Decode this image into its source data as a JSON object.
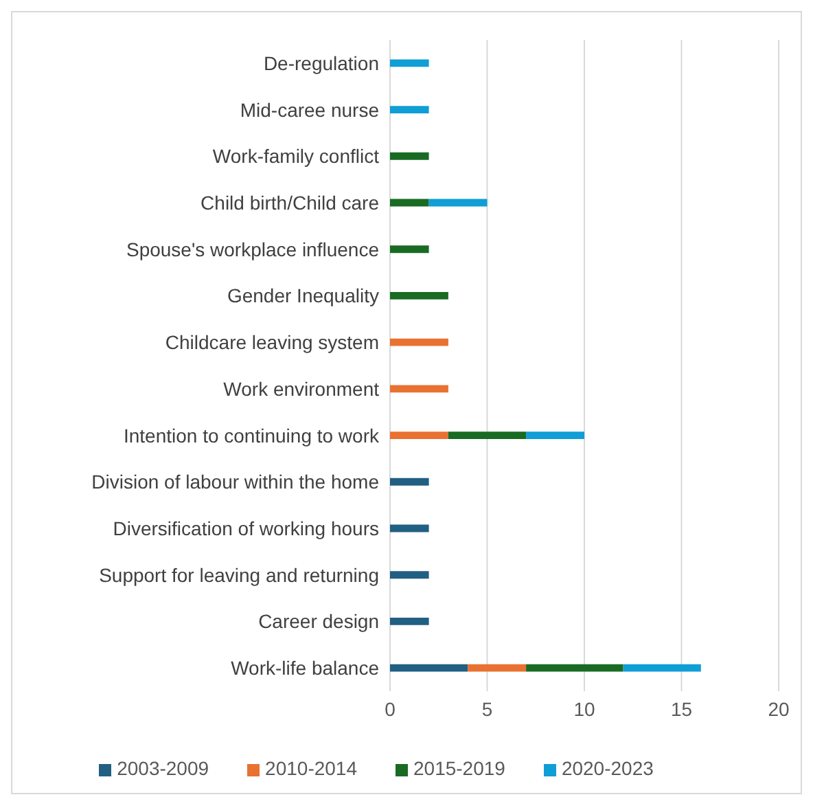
{
  "chart_data": {
    "type": "bar",
    "orientation": "horizontal",
    "stacked": true,
    "categories": [
      "De-regulation",
      "Mid-caree nurse",
      "Work-family conflict",
      "Child birth/Child care",
      "Spouse's workplace influence",
      "Gender Inequality",
      "Childcare leaving system",
      "Work environment",
      "Intention to continuing to work",
      "Division of labour within the home",
      "Diversification of working hours",
      "Support for leaving and returning",
      "Career design",
      "Work-life balance"
    ],
    "series": [
      {
        "name": "2003-2009",
        "color": "#215f83",
        "values": [
          null,
          null,
          null,
          null,
          null,
          null,
          null,
          null,
          null,
          2,
          2,
          2,
          2,
          4
        ]
      },
      {
        "name": "2010-2014",
        "color": "#e97132",
        "values": [
          null,
          null,
          null,
          null,
          null,
          null,
          3,
          3,
          3,
          null,
          null,
          null,
          null,
          3
        ]
      },
      {
        "name": "2015-2019",
        "color": "#196b24",
        "values": [
          null,
          null,
          2,
          2,
          2,
          3,
          null,
          null,
          4,
          null,
          null,
          null,
          null,
          5
        ]
      },
      {
        "name": "2020-2023",
        "color": "#0f9ed5",
        "values": [
          2,
          2,
          null,
          3,
          null,
          null,
          null,
          null,
          3,
          null,
          null,
          null,
          null,
          4
        ]
      }
    ],
    "xlim": [
      0,
      20
    ],
    "xticks": [
      0,
      5,
      10,
      15,
      20
    ],
    "grid": "x",
    "legend": "bottom"
  }
}
